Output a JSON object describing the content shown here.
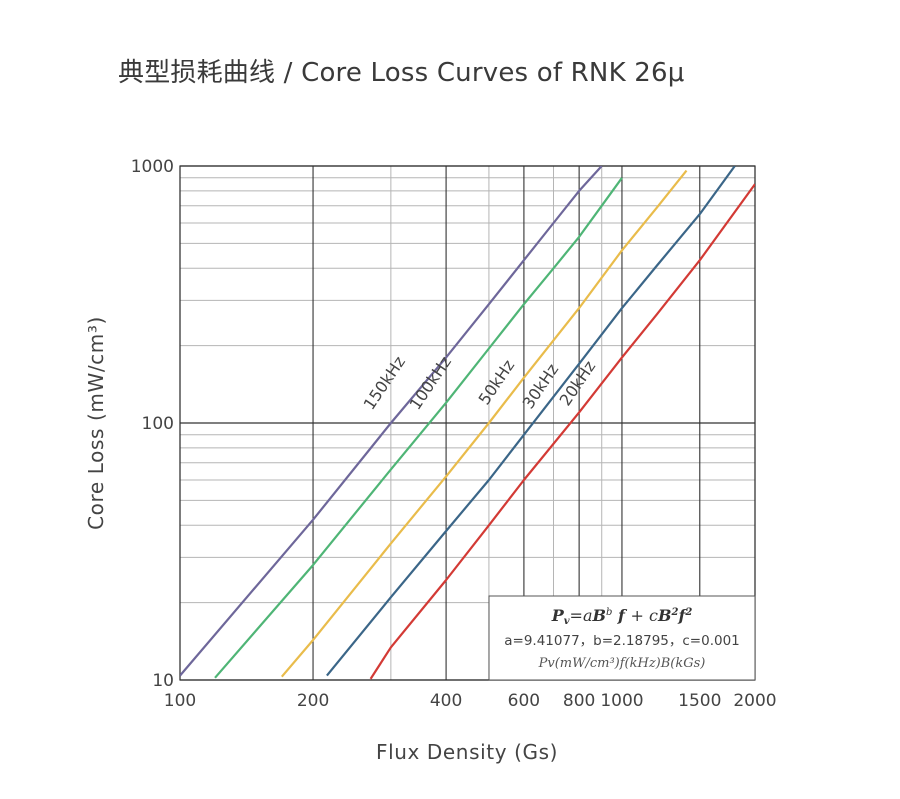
{
  "title": "典型损耗曲线 / Core Loss Curves of RNK 26μ",
  "chart_data": {
    "type": "line",
    "title": "典型损耗曲线 / Core Loss Curves of RNK 26μ",
    "xlabel": "Flux Density (Gs)",
    "ylabel": "Core Loss (mW/cm³)",
    "x_scale": "log",
    "y_scale": "log",
    "xlim": [
      100,
      2000
    ],
    "ylim": [
      10,
      1000
    ],
    "x_ticks": [
      100,
      200,
      400,
      600,
      800,
      1000,
      1500,
      2000
    ],
    "x_tick_labels": [
      "100",
      "200",
      "400",
      "600",
      "800",
      "1000",
      "1500",
      "2000"
    ],
    "y_ticks": [
      10,
      100,
      1000
    ],
    "y_tick_labels": [
      "10",
      "100",
      "1000"
    ],
    "grid": true,
    "series": [
      {
        "name": "150kHz",
        "color": "#6e679a",
        "x": [
          100,
          200,
          300,
          400,
          500,
          600,
          700,
          800,
          900
        ],
        "y": [
          10.4,
          42,
          100,
          180,
          290,
          430,
          600,
          800,
          1000
        ]
      },
      {
        "name": "100kHz",
        "color": "#4fb576",
        "x": [
          120,
          200,
          300,
          400,
          500,
          600,
          700,
          800,
          900,
          1000
        ],
        "y": [
          10.2,
          28,
          66,
          120,
          195,
          290,
          400,
          530,
          700,
          900
        ]
      },
      {
        "name": "50kHz",
        "color": "#e9bc4b",
        "x": [
          170,
          200,
          300,
          400,
          500,
          600,
          800,
          1000,
          1200,
          1400
        ],
        "y": [
          10.3,
          14.3,
          34,
          62,
          100,
          150,
          280,
          470,
          690,
          960
        ]
      },
      {
        "name": "30kHz",
        "color": "#3b6688",
        "x": [
          215,
          300,
          400,
          500,
          600,
          800,
          1000,
          1200,
          1500,
          1800
        ],
        "y": [
          10.4,
          21,
          38,
          60,
          90,
          170,
          280,
          410,
          650,
          1000
        ]
      },
      {
        "name": "20kHz",
        "color": "#d33a35",
        "x": [
          270,
          300,
          400,
          500,
          600,
          800,
          1000,
          1200,
          1500,
          2000
        ],
        "y": [
          10.1,
          13.4,
          24.5,
          40,
          60,
          110,
          180,
          265,
          430,
          850
        ]
      }
    ],
    "annotation": {
      "formula": "Pv=aB b f + cB 2 f 2",
      "coefficients": "a=9.41077，b=2.18795，c=0.001",
      "units": "Pv(mW/cm³)f(kHz)B(kGs)"
    }
  }
}
